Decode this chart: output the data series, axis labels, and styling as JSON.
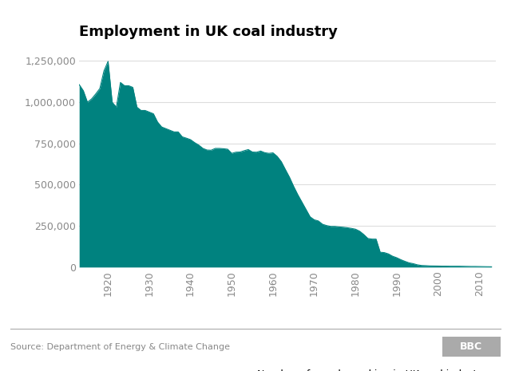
{
  "title": "Employment in UK coal industry",
  "fill_color": "#00827F",
  "line_color": "#00827F",
  "background_color": "#ffffff",
  "legend_label": "Number of people working in UK coal industry",
  "source_text": "Source: Department of Energy & Climate Change",
  "years": [
    1913,
    1914,
    1915,
    1916,
    1917,
    1918,
    1919,
    1920,
    1921,
    1922,
    1923,
    1924,
    1925,
    1926,
    1927,
    1928,
    1929,
    1930,
    1931,
    1932,
    1933,
    1934,
    1935,
    1936,
    1937,
    1938,
    1939,
    1940,
    1941,
    1942,
    1943,
    1944,
    1945,
    1946,
    1947,
    1948,
    1949,
    1950,
    1951,
    1952,
    1953,
    1954,
    1955,
    1956,
    1957,
    1958,
    1959,
    1960,
    1961,
    1962,
    1963,
    1964,
    1965,
    1966,
    1967,
    1968,
    1969,
    1970,
    1971,
    1972,
    1973,
    1974,
    1975,
    1976,
    1977,
    1978,
    1979,
    1980,
    1981,
    1982,
    1983,
    1984,
    1985,
    1986,
    1987,
    1988,
    1989,
    1990,
    1991,
    1992,
    1993,
    1994,
    1995,
    1996,
    1997,
    1998,
    1999,
    2000,
    2001,
    2002,
    2003,
    2004,
    2005,
    2006,
    2007,
    2008,
    2009,
    2010,
    2011,
    2012,
    2013
  ],
  "values": [
    1107000,
    1070000,
    1000000,
    1020000,
    1050000,
    1083000,
    1190000,
    1248000,
    1000000,
    970000,
    1120000,
    1100000,
    1100000,
    1090000,
    970000,
    950000,
    950000,
    940000,
    930000,
    880000,
    850000,
    840000,
    830000,
    820000,
    820000,
    790000,
    782000,
    773000,
    755000,
    740000,
    720000,
    710000,
    709000,
    720000,
    720000,
    718000,
    715000,
    690000,
    697000,
    698000,
    706000,
    713000,
    698000,
    697000,
    704000,
    694000,
    690000,
    693000,
    672000,
    640000,
    592000,
    545000,
    490000,
    440000,
    395000,
    350000,
    305000,
    287000,
    280000,
    260000,
    252000,
    247000,
    247000,
    244000,
    242000,
    239000,
    235000,
    230000,
    218000,
    198000,
    174000,
    170000,
    170000,
    90000,
    88000,
    80000,
    66000,
    57000,
    45000,
    35000,
    26000,
    21000,
    14000,
    10000,
    9000,
    7500,
    7000,
    6500,
    6000,
    6000,
    5500,
    5500,
    5500,
    5000,
    4500,
    4000,
    4000,
    3500,
    3000,
    2500,
    2200
  ],
  "ylim": [
    0,
    1350000
  ],
  "yticks": [
    0,
    250000,
    500000,
    750000,
    1000000,
    1250000
  ],
  "ytick_labels": [
    "0",
    "250,000",
    "500,000",
    "750,000",
    "1,000,000",
    "1,250,000"
  ],
  "xlim": [
    1913,
    2014
  ],
  "xtick_positions": [
    1920,
    1930,
    1940,
    1950,
    1960,
    1970,
    1980,
    1990,
    2000,
    2010
  ],
  "title_fontsize": 13,
  "tick_fontsize": 9,
  "legend_fontsize": 9,
  "source_fontsize": 8,
  "grid_color": "#dddddd",
  "tick_color": "#888888",
  "separator_color": "#aaaaaa",
  "bbc_bg_color": "#aaaaaa"
}
